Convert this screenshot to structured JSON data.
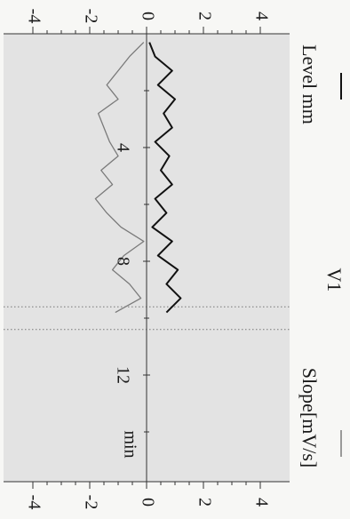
{
  "chart_data": {
    "type": "line",
    "orientation": "rotated-90",
    "title": "V1",
    "time_axis": {
      "unit_label": "min",
      "ticks": [
        {
          "value": 4,
          "label": "4"
        },
        {
          "value": 8,
          "label": "8"
        },
        {
          "value": 12,
          "label": "12"
        }
      ],
      "range": [
        0,
        16
      ]
    },
    "value_axis": {
      "ticks": [
        {
          "value": -4,
          "label": "-4"
        },
        {
          "value": -2,
          "label": "-2"
        },
        {
          "value": 0,
          "label": "0"
        },
        {
          "value": 2,
          "label": "2"
        },
        {
          "value": 4,
          "label": "4"
        }
      ],
      "range": [
        -4.3,
        4.3
      ]
    },
    "series": [
      {
        "name": "Level mm",
        "legend_label": "Level mm",
        "legend_symbol": "—",
        "color": "#111111",
        "x": [
          0.3,
          0.8,
          1.3,
          1.8,
          2.3,
          2.8,
          3.3,
          3.8,
          4.3,
          4.8,
          5.3,
          5.8,
          6.3,
          6.8,
          7.3,
          7.8,
          8.3,
          8.8,
          9.3,
          9.8
        ],
        "y": [
          0.1,
          0.3,
          0.9,
          0.4,
          1.0,
          0.6,
          0.9,
          0.3,
          0.8,
          0.5,
          0.9,
          0.3,
          0.7,
          0.2,
          0.9,
          0.4,
          1.1,
          0.7,
          1.2,
          0.7
        ]
      },
      {
        "name": "Slope[mV/s]",
        "legend_label": "Slope[mV/s]",
        "legend_symbol": "—",
        "color": "#7a7a7a",
        "x": [
          0.3,
          0.8,
          1.3,
          1.8,
          2.3,
          2.8,
          3.3,
          3.8,
          4.3,
          4.8,
          5.3,
          5.8,
          6.3,
          6.8,
          7.3,
          7.8,
          8.3,
          8.8,
          9.3,
          9.8
        ],
        "y": [
          -0.1,
          -0.6,
          -1.0,
          -1.4,
          -1.0,
          -1.7,
          -1.5,
          -1.3,
          -1.0,
          -1.6,
          -1.2,
          -1.8,
          -1.4,
          -0.9,
          -0.1,
          -0.8,
          -1.2,
          -0.6,
          -0.2,
          -1.1
        ]
      }
    ],
    "vertical_markers_min": [
      9.6,
      10.4
    ],
    "grid": false,
    "colors": {
      "background": "#e6e6e6",
      "axis": "#333333"
    }
  }
}
